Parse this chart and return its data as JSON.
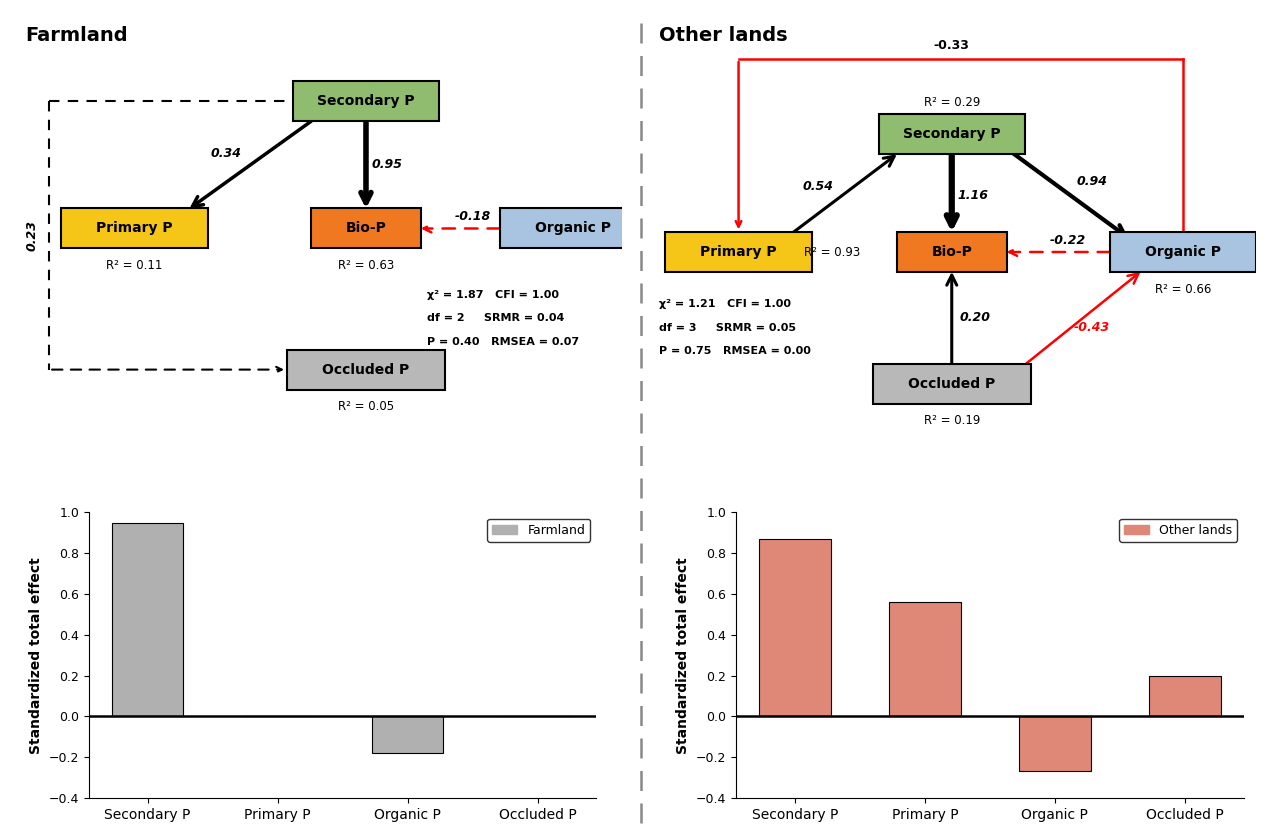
{
  "farmland_title": "Farmland",
  "other_title": "Other lands",
  "farmland_stats_line1": "χ² = 1.87   CFI = 1.00",
  "farmland_stats_line2": "df = 2     SRMR = 0.04",
  "farmland_stats_line3": "P = 0.40   RMSEA = 0.07",
  "other_stats_line1": "χ² = 1.21   CFI = 1.00",
  "other_stats_line2": "df = 3     SRMR = 0.05",
  "other_stats_line3": "P = 0.75   RMSEA = 0.00",
  "box_colors": {
    "Secondary P": "#8fbc6e",
    "Primary P": "#f5c518",
    "Bio-P": "#f07820",
    "Organic P": "#a8c4e0",
    "Occluded P": "#b8b8b8"
  },
  "farmland_bars": {
    "categories": [
      "Secondary P",
      "Primary P",
      "Organic P",
      "Occluded P"
    ],
    "values": [
      0.95,
      0.0,
      -0.18,
      0.0
    ],
    "color": "#b0b0b0"
  },
  "other_bars": {
    "categories": [
      "Secondary P",
      "Primary P",
      "Organic P",
      "Occluded P"
    ],
    "values": [
      0.87,
      0.56,
      -0.27,
      0.2
    ],
    "color": "#e08878"
  },
  "bar_ylabel": "Standardized total effect",
  "bar_ylim": [
    -0.4,
    1.0
  ],
  "bar_yticks": [
    -0.4,
    -0.2,
    0.0,
    0.2,
    0.4,
    0.6,
    0.8,
    1.0
  ]
}
